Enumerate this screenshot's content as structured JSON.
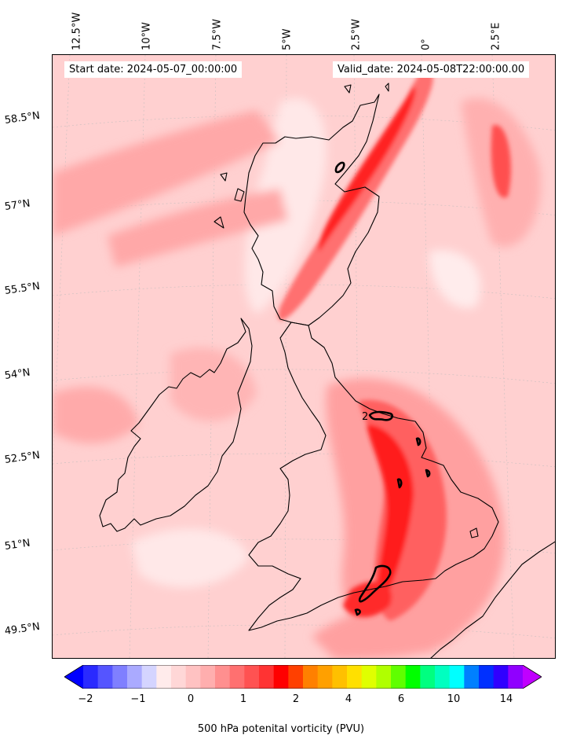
{
  "map": {
    "start_date": "Start date: 2024-05-07_00:00:00",
    "valid_date": "Valid_date: 2024-05-08T22:00:00.00",
    "longitude_labels": [
      "12.5°W",
      "10°W",
      "7.5°W",
      "5°W",
      "2.5°W",
      "0°",
      "2.5°E"
    ],
    "latitude_labels": [
      "58.5°N",
      "57°N",
      "55.5°N",
      "54°N",
      "52.5°N",
      "51°N",
      "49.5°N"
    ],
    "contour_label": "2",
    "field": "500 hPa potential vorticity shading over Ireland and Great Britain",
    "colors": {
      "background_fill": "#ffd0d0",
      "coastline": "#000000",
      "max_shading": "#ff0000"
    }
  },
  "colorbar": {
    "label": "500 hPa potenital vorticity (PVU)",
    "tick_labels": [
      "−2",
      "−1",
      "0",
      "1",
      "2",
      "4",
      "6",
      "10",
      "14"
    ],
    "colors": [
      "#0000ff",
      "#2a2aff",
      "#5555ff",
      "#7f7fff",
      "#aaaaff",
      "#d4d4ff",
      "#ffebeb",
      "#ffd7d7",
      "#ffc2c2",
      "#ffaeae",
      "#ff8f8f",
      "#ff7070",
      "#ff5252",
      "#ff3333",
      "#ff0000",
      "#ff4000",
      "#ff8000",
      "#ffa000",
      "#ffc000",
      "#ffe000",
      "#e0ff00",
      "#b0ff00",
      "#60ff00",
      "#00ff00",
      "#00ff80",
      "#00ffc0",
      "#00ffff",
      "#0080ff",
      "#0030ff",
      "#3000ff",
      "#9000ff",
      "#c000ff"
    ]
  }
}
